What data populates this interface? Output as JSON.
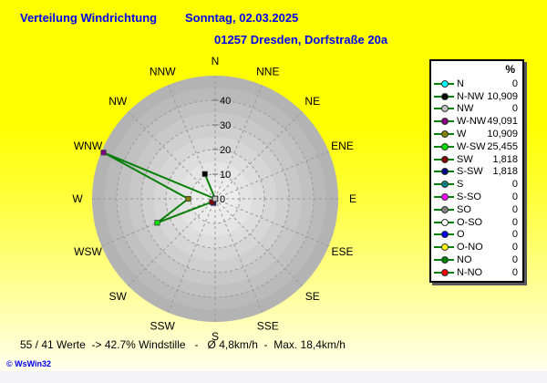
{
  "header": {
    "title": "Verteilung Windrichtung",
    "date": "Sonntag, 02.03.2025",
    "station": "01257 Dresden, Dorfstraße 20a",
    "text_color": "#0000ee"
  },
  "footer": {
    "status": "55 / 41 Werte  -> 42.7% Windstille   -   Ø 4,8km/h  -  Max. 18,4km/h",
    "copyright": "© WsWin32"
  },
  "chart_data": {
    "type": "line",
    "subtype": "wind-rose-polar",
    "title": "Verteilung Windrichtung (%)",
    "categories": [
      "N",
      "N-NO",
      "NO",
      "O-NO",
      "O",
      "O-SO",
      "SO",
      "S-SO",
      "S",
      "S-SW",
      "SW",
      "W-SW",
      "W",
      "W-NW",
      "NW",
      "N-NW"
    ],
    "display_labels": [
      "N",
      "NNE",
      "NE",
      "ENE",
      "E",
      "ESE",
      "SE",
      "SSE",
      "S",
      "SSW",
      "SW",
      "WSW",
      "W",
      "WNW",
      "NW",
      "NNW"
    ],
    "values": [
      0,
      0,
      0,
      0,
      0,
      0,
      0,
      0,
      0,
      1.818,
      1.818,
      25.455,
      10.909,
      49.091,
      0,
      10.909
    ],
    "marker_colors": [
      "#00ffff",
      "#ff0000",
      "#008000",
      "#ffff00",
      "#0000ff",
      "#ffffff",
      "#808080",
      "#ff00ff",
      "#008080",
      "#000080",
      "#800000",
      "#00e000",
      "#808000",
      "#800080",
      "#c0c0c0",
      "#000000"
    ],
    "r_axis": {
      "min": 0,
      "max": 50,
      "ring_step": 5,
      "tick_labels": [
        0,
        10,
        20,
        30,
        40
      ]
    },
    "style": {
      "line_color": "#068006",
      "grid_color": "#999999",
      "axis_tick_color": "#666666",
      "disc_inner": "#f2f2f2",
      "disc_outer": "#b3b3b3",
      "label_color": "#000000"
    },
    "legend_position": "right"
  },
  "legend": {
    "header": "%",
    "rows": [
      {
        "label": "N",
        "value": "0",
        "color": "#00ffff"
      },
      {
        "label": "N-NW",
        "value": "10,909",
        "color": "#000000"
      },
      {
        "label": "NW",
        "value": "0",
        "color": "#c0c0c0"
      },
      {
        "label": "W-NW",
        "value": "49,091",
        "color": "#800080"
      },
      {
        "label": "W",
        "value": "10,909",
        "color": "#808000"
      },
      {
        "label": "W-SW",
        "value": "25,455",
        "color": "#00e000"
      },
      {
        "label": "SW",
        "value": "1,818",
        "color": "#800000"
      },
      {
        "label": "S-SW",
        "value": "1,818",
        "color": "#000080"
      },
      {
        "label": "S",
        "value": "0",
        "color": "#008080"
      },
      {
        "label": "S-SO",
        "value": "0",
        "color": "#ff00ff"
      },
      {
        "label": "SO",
        "value": "0",
        "color": "#808080"
      },
      {
        "label": "O-SO",
        "value": "0",
        "color": "#ffffff"
      },
      {
        "label": "O",
        "value": "0",
        "color": "#0000ff"
      },
      {
        "label": "O-NO",
        "value": "0",
        "color": "#ffff00"
      },
      {
        "label": "NO",
        "value": "0",
        "color": "#008000"
      },
      {
        "label": "N-NO",
        "value": "0",
        "color": "#ff0000"
      }
    ]
  }
}
